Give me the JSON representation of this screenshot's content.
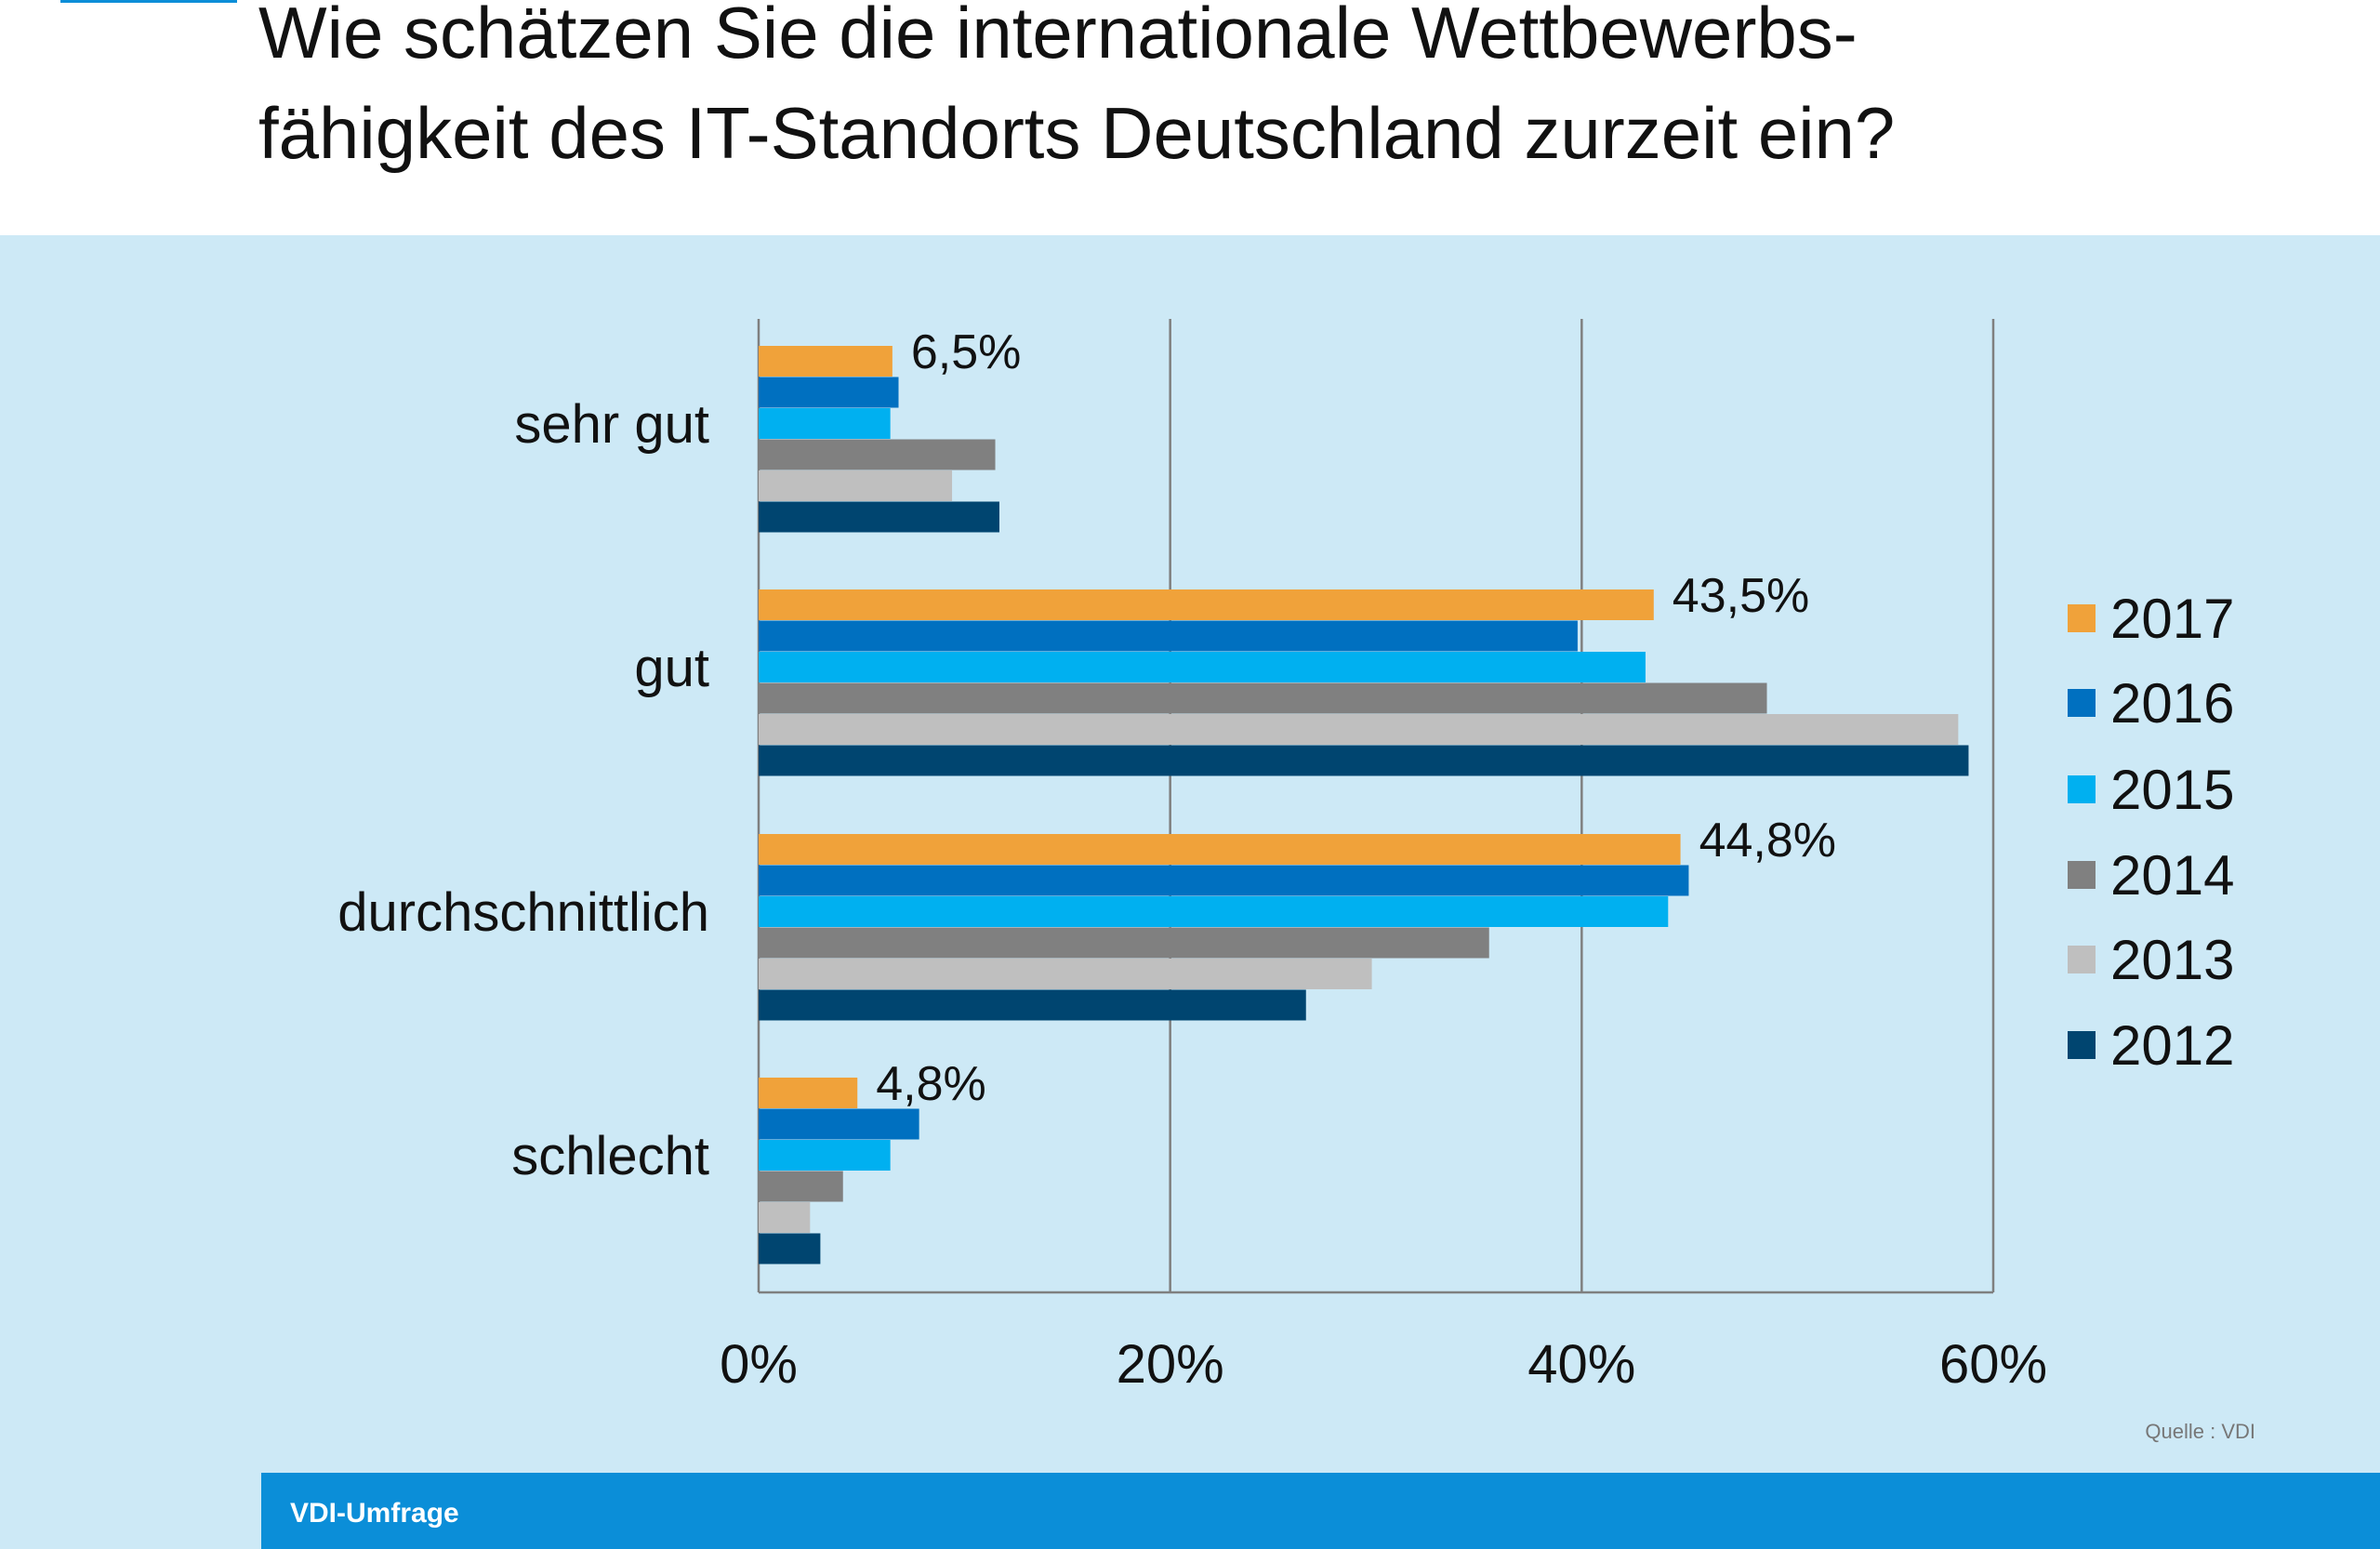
{
  "title_lines": [
    "Wie schätzen Sie die internationale Wettbewerbs-",
    "fähigkeit des IT-Standorts Deutschland zurzeit ein?"
  ],
  "source": "Quelle : VDI",
  "footer": "VDI-Umfrage",
  "colors": {
    "background": "#CDE9F6",
    "footer": "#0B8ED8",
    "grid": "#7F7F7F"
  },
  "chart_data": {
    "type": "bar",
    "orientation": "horizontal",
    "categories": [
      "sehr gut",
      "gut",
      "durchschnittlich",
      "schlecht"
    ],
    "series": [
      {
        "name": "2017",
        "color": "#F0A23A",
        "values": [
          6.5,
          43.5,
          44.8,
          4.8
        ]
      },
      {
        "name": "2016",
        "color": "#0070C0",
        "values": [
          6.8,
          39.8,
          45.2,
          7.8
        ]
      },
      {
        "name": "2015",
        "color": "#00B0F0",
        "values": [
          6.4,
          43.1,
          44.2,
          6.4
        ]
      },
      {
        "name": "2014",
        "color": "#808080",
        "values": [
          11.5,
          49.0,
          35.5,
          4.1
        ]
      },
      {
        "name": "2013",
        "color": "#BFBFBF",
        "values": [
          9.4,
          58.3,
          29.8,
          2.5
        ]
      },
      {
        "name": "2012",
        "color": "#004570",
        "values": [
          11.7,
          58.8,
          26.6,
          3.0
        ]
      }
    ],
    "data_labels": [
      "6,5%",
      "43,5%",
      "44,8%",
      "4,8%"
    ],
    "xlim": [
      0,
      60
    ],
    "xticks": [
      0,
      20,
      40,
      60
    ],
    "xtick_labels": [
      "0%",
      "20%",
      "40%",
      "60%"
    ],
    "grid": true,
    "legend_position": "right"
  }
}
